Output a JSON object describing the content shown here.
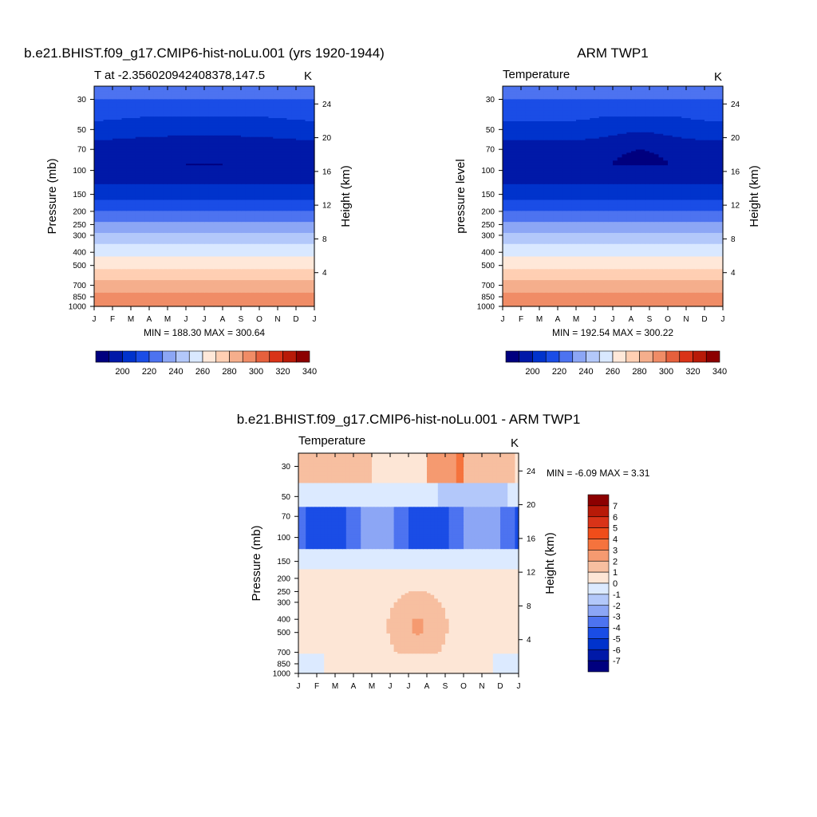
{
  "chart_data": [
    {
      "type": "heatmap",
      "title": "b.e21.BHIST.f09_g17.CMIP6-hist-noLu.001 (yrs 1920-1944)",
      "subtitle_left": "T at -2.356020942408378,147.5",
      "subtitle_right": "K",
      "ylabel": "Pressure (mb)",
      "ylabel_right": "Height (km)",
      "x_ticks": [
        "J",
        "F",
        "M",
        "A",
        "M",
        "J",
        "J",
        "A",
        "S",
        "O",
        "N",
        "D",
        "J"
      ],
      "y_ticks": [
        "30",
        "50",
        "70",
        "100",
        "150",
        "200",
        "250",
        "300",
        "400",
        "500",
        "700",
        "850",
        "1000"
      ],
      "height_ticks": [
        "24",
        "20",
        "16",
        "12",
        "8",
        "4"
      ],
      "stats": "MIN = 188.30 MAX = 300.64",
      "colorbar_ticks": [
        "200",
        "220",
        "240",
        "260",
        "280",
        "300",
        "320",
        "340"
      ],
      "colors": [
        "#00007f",
        "#0019a8",
        "#0033cc",
        "#1a4de6",
        "#4d73f0",
        "#8ca6f5",
        "#b3c8fa",
        "#d9e8ff",
        "#ffe8d9",
        "#ffcfb3",
        "#f5ae8c",
        "#f08c66",
        "#e6603d",
        "#d93318",
        "#b81a08",
        "#8c0000"
      ],
      "level_edges": [
        190,
        200,
        210,
        220,
        230,
        240,
        250,
        260,
        270,
        280,
        290,
        300,
        310,
        320,
        330,
        340
      ],
      "min": 188.3,
      "max": 300.64,
      "height_km_ticks": [
        24,
        20,
        16,
        12,
        8,
        4
      ]
    },
    {
      "type": "heatmap",
      "title": "ARM TWP1",
      "subtitle_left": "Temperature",
      "subtitle_right": "K",
      "ylabel": "pressure level",
      "ylabel_right": "Height (km)",
      "x_ticks": [
        "J",
        "F",
        "M",
        "A",
        "M",
        "J",
        "J",
        "A",
        "S",
        "O",
        "N",
        "D",
        "J"
      ],
      "y_ticks": [
        "30",
        "50",
        "70",
        "100",
        "150",
        "200",
        "250",
        "300",
        "400",
        "500",
        "700",
        "850",
        "1000"
      ],
      "height_ticks": [
        "24",
        "20",
        "16",
        "12",
        "8",
        "4"
      ],
      "stats": "MIN = 192.54 MAX = 300.22",
      "colorbar_ticks": [
        "200",
        "220",
        "240",
        "260",
        "280",
        "300",
        "320",
        "340"
      ],
      "colors": [
        "#00007f",
        "#0019a8",
        "#0033cc",
        "#1a4de6",
        "#4d73f0",
        "#8ca6f5",
        "#b3c8fa",
        "#d9e8ff",
        "#ffe8d9",
        "#ffcfb3",
        "#f5ae8c",
        "#f08c66",
        "#e6603d",
        "#d93318",
        "#b81a08",
        "#8c0000"
      ],
      "min": 192.54,
      "max": 300.22
    },
    {
      "type": "heatmap",
      "title": "b.e21.BHIST.f09_g17.CMIP6-hist-noLu.001 - ARM TWP1",
      "subtitle_left": "Temperature",
      "subtitle_right": "K",
      "ylabel": "Pressure (mb)",
      "ylabel_right": "Height (km)",
      "x_ticks": [
        "J",
        "F",
        "M",
        "A",
        "M",
        "J",
        "J",
        "A",
        "S",
        "O",
        "N",
        "D",
        "J"
      ],
      "y_ticks": [
        "30",
        "50",
        "70",
        "100",
        "150",
        "200",
        "250",
        "300",
        "400",
        "500",
        "700",
        "850",
        "1000"
      ],
      "height_ticks": [
        "24",
        "20",
        "16",
        "12",
        "8",
        "4"
      ],
      "stats": "MIN =  -6.09 MAX =   3.31",
      "colorbar_ticks": [
        "7",
        "6",
        "5",
        "4",
        "3",
        "2",
        "1",
        "0",
        "-1",
        "-2",
        "-3",
        "-4",
        "-5",
        "-6",
        "-7"
      ],
      "colors": [
        "#8c0000",
        "#b81a08",
        "#d93318",
        "#f04d1a",
        "#f5733d",
        "#f59a70",
        "#f7bfa0",
        "#fde6d6",
        "#dceaff",
        "#b3c8fa",
        "#8ca6f5",
        "#4d73f0",
        "#1a4de6",
        "#0033cc",
        "#0019a8",
        "#00007f"
      ],
      "min": -6.09,
      "max": 3.31
    }
  ]
}
